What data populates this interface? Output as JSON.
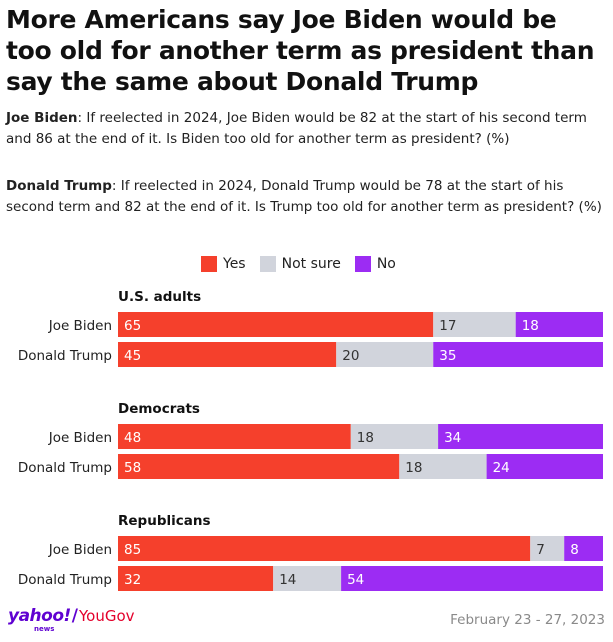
{
  "title": "More Americans say Joe Biden would be too old for another term as president than say the same about Donald Trump",
  "questions": {
    "biden": {
      "name": "Joe Biden",
      "text": ": If reelected in 2024, Joe Biden would be 82 at the start of his second term and 86 at the end of it. Is Biden too old for another term as president? (%)"
    },
    "trump": {
      "name": "Donald Trump",
      "text": ": If reelected in 2024, Donald Trump would be 78 at the start of his second term and 82 at the end of it. Is Trump too old for another term as president? (%)"
    }
  },
  "legend": [
    {
      "label": "Yes",
      "color": "#f5402c"
    },
    {
      "label": "Not sure",
      "color": "#d1d4dc"
    },
    {
      "label": "No",
      "color": "#9c2cf3"
    }
  ],
  "chart_data": {
    "type": "bar",
    "stacked": true,
    "orientation": "horizontal",
    "series_names": [
      "Yes",
      "Not sure",
      "No"
    ],
    "colors": [
      "#f5402c",
      "#d1d4dc",
      "#9c2cf3"
    ],
    "groups": [
      {
        "name": "U.S. adults",
        "rows": [
          {
            "label": "Joe Biden",
            "values": [
              65,
              17,
              18
            ]
          },
          {
            "label": "Donald Trump",
            "values": [
              45,
              20,
              35
            ]
          }
        ]
      },
      {
        "name": "Democrats",
        "rows": [
          {
            "label": "Joe Biden",
            "values": [
              48,
              18,
              34
            ]
          },
          {
            "label": "Donald Trump",
            "values": [
              58,
              18,
              24
            ]
          }
        ]
      },
      {
        "name": "Republicans",
        "rows": [
          {
            "label": "Joe Biden",
            "values": [
              85,
              7,
              8
            ]
          },
          {
            "label": "Donald Trump",
            "values": [
              32,
              14,
              54
            ]
          }
        ]
      }
    ],
    "xlim": [
      0,
      100
    ]
  },
  "footer": {
    "logo_yahoo": "yahoo!",
    "logo_news": "news",
    "logo_sep": "/",
    "logo_yougov": "YouGov",
    "date": "February 23 - 27, 2023"
  }
}
